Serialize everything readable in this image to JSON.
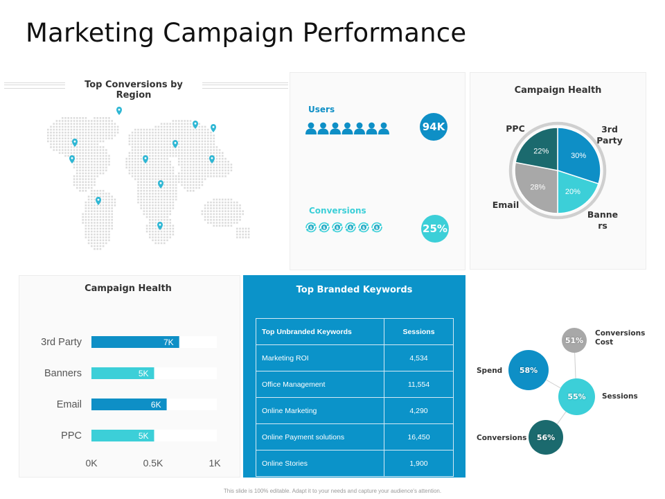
{
  "title": "Marketing Campaign Performance",
  "map": {
    "title": "Top Conversions by Region"
  },
  "kpis": {
    "users_label": "Users",
    "users_value": "94K",
    "conversions_label": "Conversions",
    "conversions_value": "25%"
  },
  "colors": {
    "blue": "#0e8fc6",
    "teal": "#3ccfd8",
    "dark_teal": "#1b6a6e",
    "gray": "#a8a8a8",
    "table_bg": "#0b93c9"
  },
  "pie_panel": {
    "title": "Campaign Health"
  },
  "bar_panel": {
    "title": "Campaign Health"
  },
  "keywords": {
    "title": "Top Branded Keywords",
    "headers": [
      "Top Unbranded Keywords",
      "Sessions"
    ],
    "rows": [
      [
        "Marketing ROI",
        "4,534"
      ],
      [
        "Office Management",
        "11,554"
      ],
      [
        "Online Marketing",
        "4,290"
      ],
      [
        "Online Payment solutions",
        "16,450"
      ],
      [
        "Online Stories",
        "1,900"
      ]
    ]
  },
  "bubbles": [
    {
      "label": "Conversions Cost",
      "value": "51%"
    },
    {
      "label": "Spend",
      "value": "58%"
    },
    {
      "label": "Sessions",
      "value": "55%"
    },
    {
      "label": "Conversions",
      "value": "56%"
    }
  ],
  "footer": "This slide is 100% editable. Adapt it to your needs and capture your audience's attention.",
  "chart_data": [
    {
      "type": "pie",
      "title": "Campaign Health",
      "slices": [
        {
          "label": "3rd Party",
          "value": 30,
          "display": "30%"
        },
        {
          "label": "Banners",
          "value": 20,
          "display": "20%"
        },
        {
          "label": "Email",
          "value": 28,
          "display": "28%"
        },
        {
          "label": "PPC",
          "value": 22,
          "display": "22%"
        }
      ]
    },
    {
      "type": "bar",
      "orientation": "horizontal",
      "title": "Campaign Health",
      "categories": [
        "3rd Party",
        "Banners",
        "Email",
        "PPC"
      ],
      "values": [
        7,
        5,
        6,
        5
      ],
      "data_labels": [
        "7K",
        "5K",
        "6K",
        "5K"
      ],
      "xticks": [
        "0K",
        "0.5K",
        "1K"
      ],
      "xlim": [
        0,
        10
      ]
    }
  ]
}
